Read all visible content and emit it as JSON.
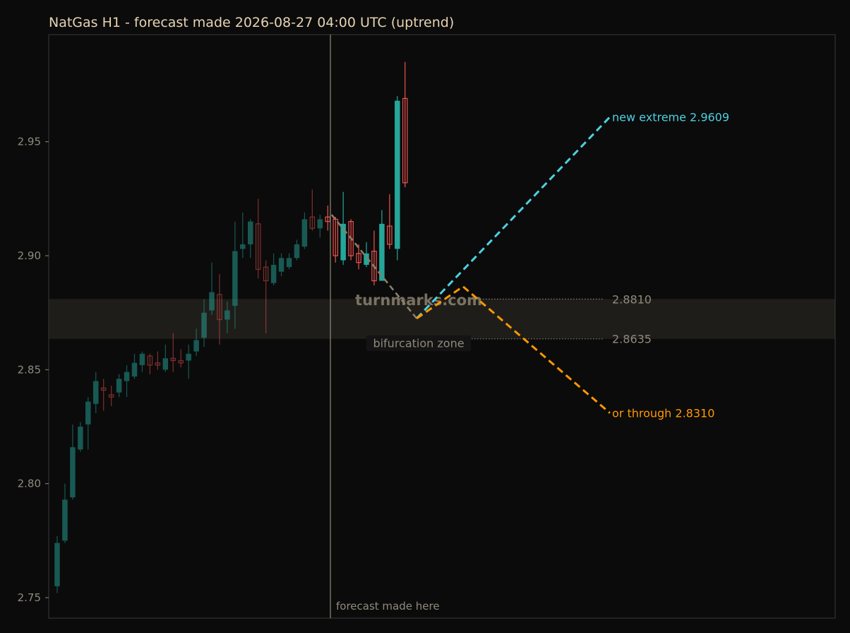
{
  "chart_data": {
    "type": "candlestick",
    "title": "NatGas H1 - forecast made 2026-08-27 04:00 UTC (uptrend)",
    "ylim": [
      2.741,
      2.997
    ],
    "yticks": [
      2.75,
      2.8,
      2.85,
      2.9,
      2.95
    ],
    "ytick_labels": [
      "2.75",
      "2.80",
      "2.85",
      "2.90",
      "2.95"
    ],
    "grid": false,
    "colors": {
      "background": "#0b0b0b",
      "up": "#26a69a",
      "down": "#ef5350",
      "zone": "#1f1d19",
      "frame": "#333333",
      "text": "#e6d3b3",
      "muted": "#8f8a7c",
      "up_scenario": "#4dd0e1",
      "down_scenario": "#ff9800",
      "pre_path": "#8a7f68"
    },
    "history_candles": [
      {
        "o": 2.755,
        "h": 2.777,
        "l": 2.752,
        "c": 2.774
      },
      {
        "o": 2.775,
        "h": 2.8,
        "l": 2.774,
        "c": 2.793
      },
      {
        "o": 2.794,
        "h": 2.826,
        "l": 2.793,
        "c": 2.816
      },
      {
        "o": 2.815,
        "h": 2.827,
        "l": 2.814,
        "c": 2.825
      },
      {
        "o": 2.826,
        "h": 2.838,
        "l": 2.815,
        "c": 2.836
      },
      {
        "o": 2.835,
        "h": 2.849,
        "l": 2.831,
        "c": 2.845
      },
      {
        "o": 2.842,
        "h": 2.846,
        "l": 2.832,
        "c": 2.841
      },
      {
        "o": 2.839,
        "h": 2.843,
        "l": 2.834,
        "c": 2.838
      },
      {
        "o": 2.84,
        "h": 2.848,
        "l": 2.838,
        "c": 2.846
      },
      {
        "o": 2.845,
        "h": 2.852,
        "l": 2.838,
        "c": 2.849
      },
      {
        "o": 2.847,
        "h": 2.857,
        "l": 2.846,
        "c": 2.853
      },
      {
        "o": 2.852,
        "h": 2.858,
        "l": 2.849,
        "c": 2.857
      },
      {
        "o": 2.856,
        "h": 2.857,
        "l": 2.848,
        "c": 2.852
      },
      {
        "o": 2.853,
        "h": 2.858,
        "l": 2.85,
        "c": 2.852
      },
      {
        "o": 2.85,
        "h": 2.861,
        "l": 2.849,
        "c": 2.855
      },
      {
        "o": 2.855,
        "h": 2.866,
        "l": 2.849,
        "c": 2.854
      },
      {
        "o": 2.854,
        "h": 2.859,
        "l": 2.851,
        "c": 2.853
      },
      {
        "o": 2.854,
        "h": 2.861,
        "l": 2.846,
        "c": 2.857
      },
      {
        "o": 2.858,
        "h": 2.868,
        "l": 2.856,
        "c": 2.863
      },
      {
        "o": 2.864,
        "h": 2.881,
        "l": 2.86,
        "c": 2.875
      },
      {
        "o": 2.876,
        "h": 2.897,
        "l": 2.874,
        "c": 2.884
      },
      {
        "o": 2.883,
        "h": 2.892,
        "l": 2.861,
        "c": 2.872
      },
      {
        "o": 2.872,
        "h": 2.88,
        "l": 2.866,
        "c": 2.876
      },
      {
        "o": 2.878,
        "h": 2.915,
        "l": 2.868,
        "c": 2.902
      },
      {
        "o": 2.903,
        "h": 2.919,
        "l": 2.899,
        "c": 2.905
      },
      {
        "o": 2.905,
        "h": 2.916,
        "l": 2.899,
        "c": 2.915
      },
      {
        "o": 2.914,
        "h": 2.925,
        "l": 2.89,
        "c": 2.894
      },
      {
        "o": 2.895,
        "h": 2.898,
        "l": 2.866,
        "c": 2.889
      },
      {
        "o": 2.888,
        "h": 2.901,
        "l": 2.887,
        "c": 2.896
      },
      {
        "o": 2.893,
        "h": 2.901,
        "l": 2.891,
        "c": 2.899
      },
      {
        "o": 2.895,
        "h": 2.901,
        "l": 2.894,
        "c": 2.899
      },
      {
        "o": 2.899,
        "h": 2.907,
        "l": 2.898,
        "c": 2.905
      },
      {
        "o": 2.904,
        "h": 2.919,
        "l": 2.903,
        "c": 2.916
      },
      {
        "o": 2.917,
        "h": 2.929,
        "l": 2.911,
        "c": 2.912
      },
      {
        "o": 2.912,
        "h": 2.918,
        "l": 2.908,
        "c": 2.916
      }
    ],
    "forecast_candles": [
      {
        "o": 2.917,
        "h": 2.922,
        "l": 2.911,
        "c": 2.915
      },
      {
        "o": 2.916,
        "h": 2.917,
        "l": 2.897,
        "c": 2.9
      },
      {
        "o": 2.898,
        "h": 2.928,
        "l": 2.896,
        "c": 2.914
      },
      {
        "o": 2.915,
        "h": 2.916,
        "l": 2.898,
        "c": 2.9
      },
      {
        "o": 2.901,
        "h": 2.905,
        "l": 2.894,
        "c": 2.897
      },
      {
        "o": 2.896,
        "h": 2.906,
        "l": 2.895,
        "c": 2.901
      },
      {
        "o": 2.902,
        "h": 2.911,
        "l": 2.887,
        "c": 2.889
      },
      {
        "o": 2.889,
        "h": 2.92,
        "l": 2.889,
        "c": 2.914
      },
      {
        "o": 2.913,
        "h": 2.927,
        "l": 2.903,
        "c": 2.905
      },
      {
        "o": 2.903,
        "h": 2.97,
        "l": 2.898,
        "c": 2.968
      },
      {
        "o": 2.969,
        "h": 2.985,
        "l": 2.93,
        "c": 2.932
      }
    ],
    "bifurcation_zone": [
      2.8635,
      2.881
    ],
    "pre_path": [
      {
        "t": 35.5,
        "y": 2.918
      },
      {
        "t": 46.5,
        "y": 2.8725
      }
    ],
    "scenarios": [
      {
        "label": "new extreme 2.9609",
        "points": [
          {
            "t": 46.5,
            "y": 2.8725
          },
          {
            "t": 71.5,
            "y": 2.9609
          }
        ]
      },
      {
        "label": "or through 2.8310",
        "points": [
          {
            "t": 46.5,
            "y": 2.8725
          },
          {
            "t": 52.5,
            "y": 2.8865
          },
          {
            "t": 71.5,
            "y": 2.831
          }
        ]
      }
    ],
    "levels": [
      {
        "value": 2.881,
        "label": "2.8810"
      },
      {
        "value": 2.8635,
        "label": "2.8635"
      }
    ],
    "zone_label": "bifurcation zone",
    "forecast_marker_label": "forecast made here",
    "watermark": "turnmarks.com"
  }
}
